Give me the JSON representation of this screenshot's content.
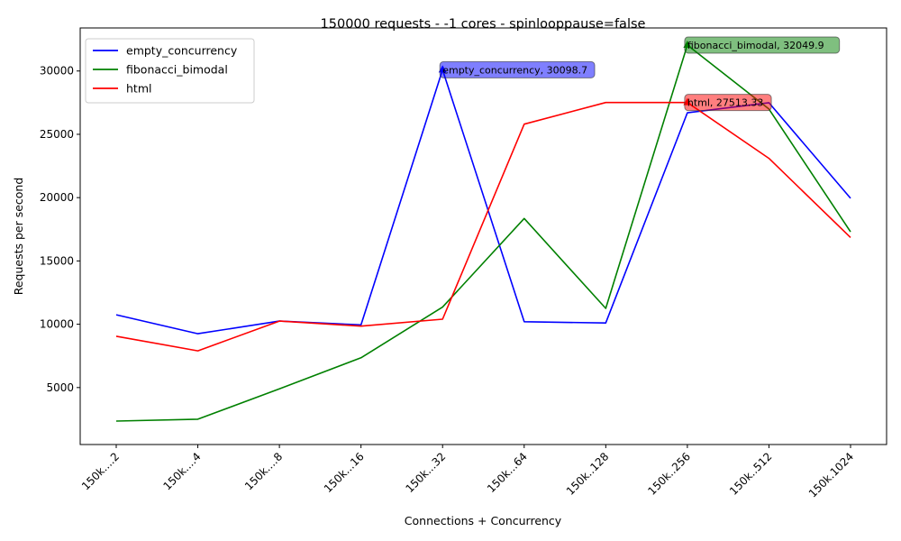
{
  "chart_data": {
    "type": "line",
    "title": "150000 requests - -1 cores - spinlooppause=false",
    "xlabel": "Connections + Concurrency",
    "ylabel": "Requests per second",
    "categories": [
      "150k....2",
      "150k....4",
      "150k....8",
      "150k...16",
      "150k...32",
      "150k...64",
      "150k..128",
      "150k..256",
      "150k..512",
      "150k.1024"
    ],
    "ylim": [
      500,
      33400
    ],
    "yticks": [
      5000,
      10000,
      15000,
      20000,
      25000,
      30000
    ],
    "grid": false,
    "legend_position": "top-left",
    "series": [
      {
        "name": "empty_concurrency",
        "color": "#0000ff",
        "values": [
          10750,
          9250,
          10250,
          9950,
          30098.7,
          10200,
          10100,
          26700,
          27500,
          19950
        ]
      },
      {
        "name": "fibonacci_bimodal",
        "color": "#008000",
        "values": [
          2350,
          2500,
          4900,
          7350,
          11350,
          18350,
          11250,
          32049.9,
          27000,
          17300
        ]
      },
      {
        "name": "html",
        "color": "#ff0000",
        "values": [
          9050,
          7900,
          10250,
          9850,
          10400,
          25800,
          27513.33,
          27513.33,
          23100,
          16850
        ]
      }
    ],
    "annotations": [
      {
        "series": "empty_concurrency",
        "category_index": 4,
        "text": "empty_concurrency, 30098.7",
        "color": "#0000ff"
      },
      {
        "series": "fibonacci_bimodal",
        "category_index": 7,
        "text": "fibonacci_bimodal, 32049.9",
        "color": "#008000"
      },
      {
        "series": "html",
        "category_index": 7,
        "text": "html, 27513.33",
        "color": "#ff0000"
      }
    ]
  }
}
